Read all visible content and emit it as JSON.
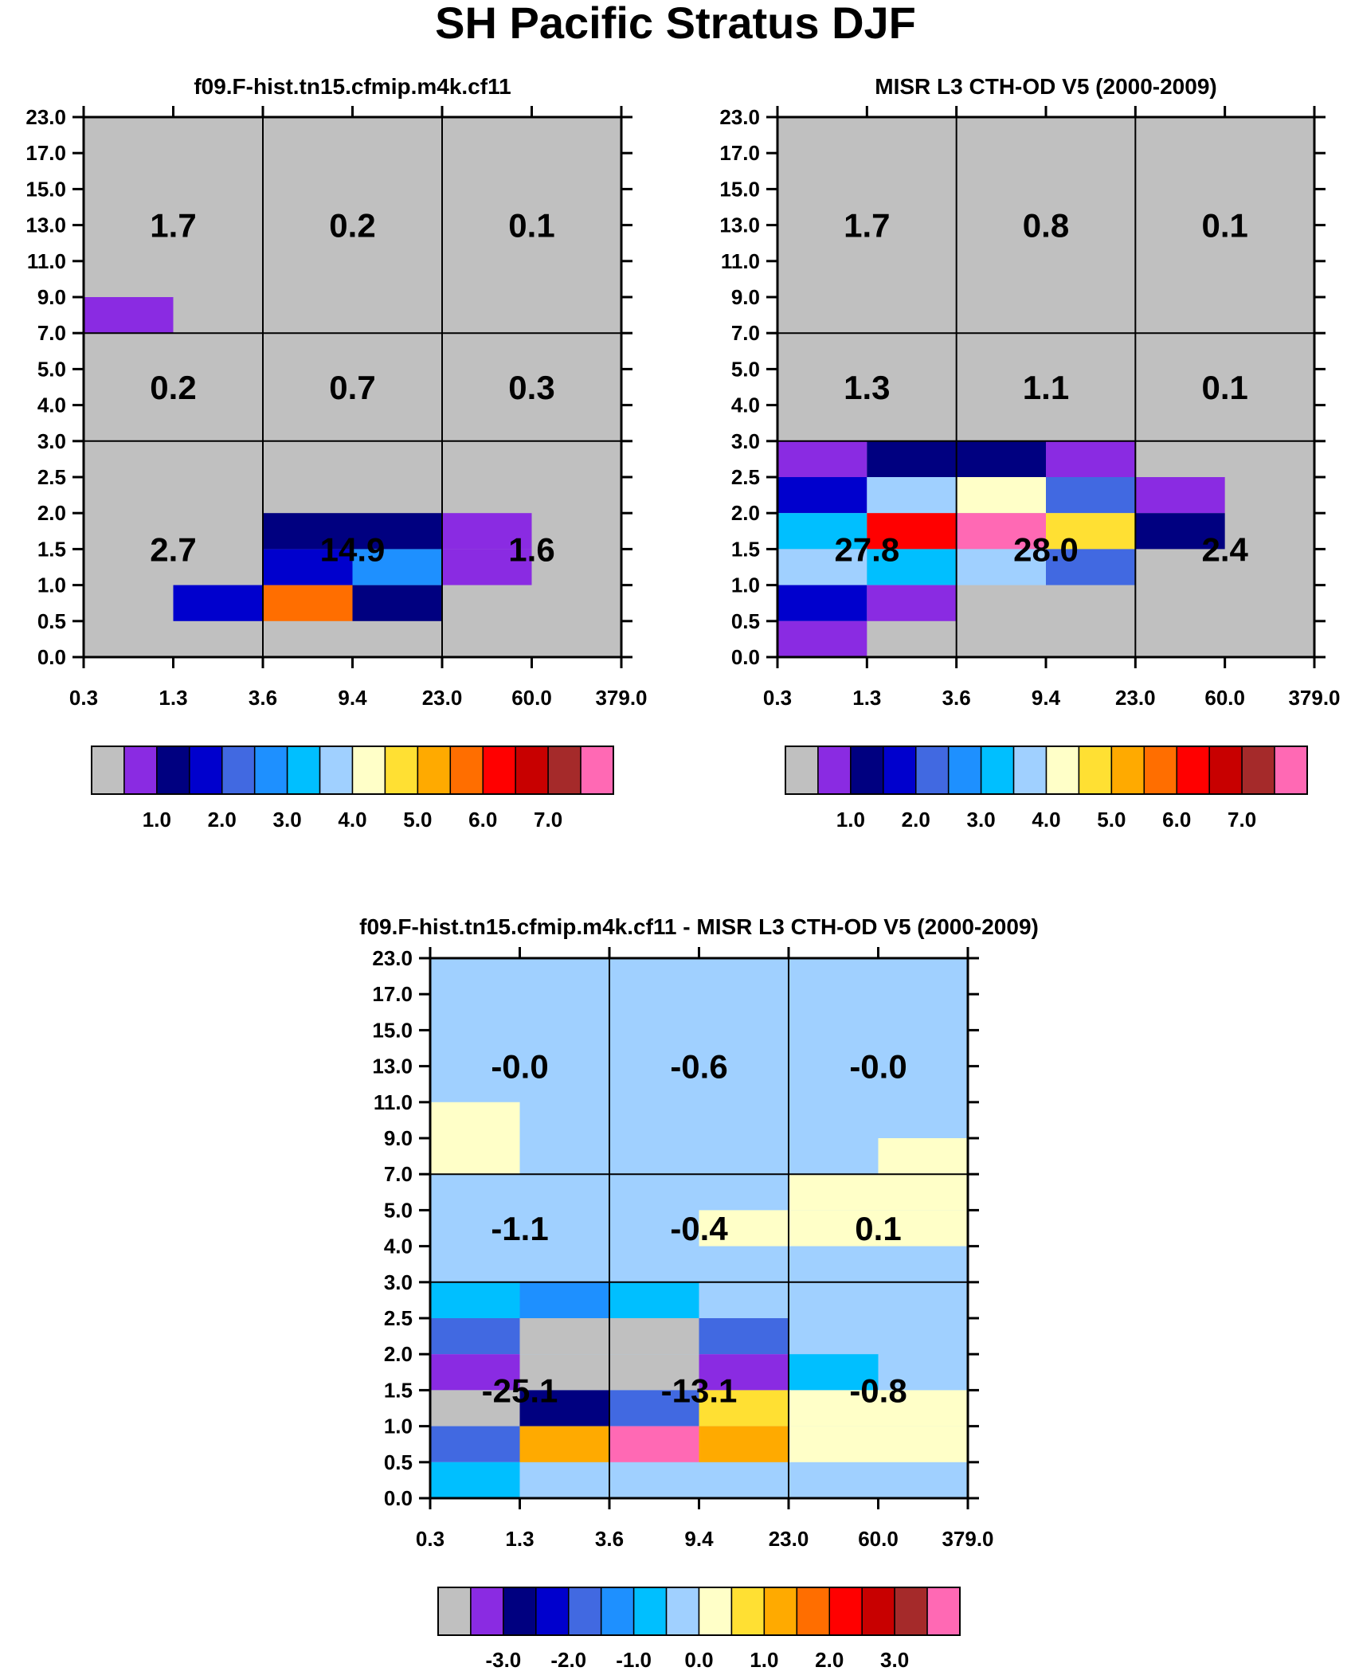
{
  "title": "SH Pacific Stratus DJF",
  "colors": {
    "palette": [
      "#c0c0c0",
      "#8a2be2",
      "#000080",
      "#0000cd",
      "#4169e1",
      "#1e90ff",
      "#00bfff",
      "#a0d0ff",
      "#ffffc8",
      "#ffe033",
      "#ffaa00",
      "#ff6e00",
      "#ff0000",
      "#c80000",
      "#a52a2a",
      "#ff69b4"
    ],
    "background": "#c0c0c0"
  },
  "chart_data": [
    {
      "type": "heatmap",
      "title": "f09.F-hist.tn15.cfmip.m4k.cf11",
      "x_tick_labels": [
        "0.3",
        "1.3",
        "3.6",
        "9.4",
        "23.0",
        "60.0",
        "379.0"
      ],
      "y_tick_labels": [
        "0.0",
        "0.5",
        "1.0",
        "1.5",
        "2.0",
        "2.5",
        "3.0",
        "4.0",
        "5.0",
        "7.0",
        "9.0",
        "11.0",
        "13.0",
        "15.0",
        "17.0",
        "23.0"
      ],
      "cells": [
        {
          "col": 0,
          "row": 9,
          "ci": 1
        },
        {
          "col": 1,
          "row": 1,
          "ci": 3
        },
        {
          "col": 2,
          "row": 1,
          "ci": 11
        },
        {
          "col": 3,
          "row": 1,
          "ci": 2
        },
        {
          "col": 2,
          "row": 2,
          "ci": 3
        },
        {
          "col": 3,
          "row": 2,
          "ci": 5
        },
        {
          "col": 2,
          "row": 3,
          "ci": 2
        },
        {
          "col": 3,
          "row": 3,
          "ci": 2
        },
        {
          "col": 4,
          "row": 2,
          "ci": 1
        },
        {
          "col": 4,
          "row": 3,
          "ci": 1
        }
      ],
      "region_values": [
        {
          "label": "1.7",
          "col_center": 1,
          "y": 13.0
        },
        {
          "label": "0.2",
          "col_center": 3,
          "y": 13.0
        },
        {
          "label": "0.1",
          "col_center": 5,
          "y": 13.0
        },
        {
          "label": "0.2",
          "col_center": 1,
          "y": 4.5
        },
        {
          "label": "0.7",
          "col_center": 3,
          "y": 4.5
        },
        {
          "label": "0.3",
          "col_center": 5,
          "y": 4.5
        },
        {
          "label": "2.7",
          "col_center": 1,
          "y": 1.5
        },
        {
          "label": "14.9",
          "col_center": 3,
          "y": 1.5
        },
        {
          "label": "1.6",
          "col_center": 5,
          "y": 1.5
        }
      ],
      "colorbar": {
        "labels": [
          "1.0",
          "2.0",
          "3.0",
          "4.0",
          "5.0",
          "6.0",
          "7.0"
        ],
        "colors": [
          "#c0c0c0",
          "#8a2be2",
          "#000080",
          "#0000cd",
          "#4169e1",
          "#1e90ff",
          "#00bfff",
          "#a0d0ff",
          "#ffffc8",
          "#ffe033",
          "#ffaa00",
          "#ff6e00",
          "#ff0000",
          "#c80000",
          "#a52a2a",
          "#ff69b4"
        ]
      }
    },
    {
      "type": "heatmap",
      "title": "MISR L3 CTH-OD V5 (2000-2009)",
      "x_tick_labels": [
        "0.3",
        "1.3",
        "3.6",
        "9.4",
        "23.0",
        "60.0",
        "379.0"
      ],
      "y_tick_labels": [
        "0.0",
        "0.5",
        "1.0",
        "1.5",
        "2.0",
        "2.5",
        "3.0",
        "4.0",
        "5.0",
        "7.0",
        "9.0",
        "11.0",
        "13.0",
        "15.0",
        "17.0",
        "23.0"
      ],
      "cells": [
        {
          "col": 0,
          "row": 5,
          "ci": 1
        },
        {
          "col": 1,
          "row": 5,
          "ci": 2
        },
        {
          "col": 2,
          "row": 5,
          "ci": 2
        },
        {
          "col": 3,
          "row": 5,
          "ci": 1
        },
        {
          "col": 0,
          "row": 4,
          "ci": 3
        },
        {
          "col": 1,
          "row": 4,
          "ci": 7
        },
        {
          "col": 2,
          "row": 4,
          "ci": 8
        },
        {
          "col": 3,
          "row": 4,
          "ci": 4
        },
        {
          "col": 4,
          "row": 4,
          "ci": 1
        },
        {
          "col": 0,
          "row": 3,
          "ci": 6
        },
        {
          "col": 1,
          "row": 3,
          "ci": 12
        },
        {
          "col": 2,
          "row": 3,
          "ci": 15
        },
        {
          "col": 3,
          "row": 3,
          "ci": 9
        },
        {
          "col": 4,
          "row": 3,
          "ci": 2
        },
        {
          "col": 0,
          "row": 2,
          "ci": 7
        },
        {
          "col": 1,
          "row": 2,
          "ci": 6
        },
        {
          "col": 2,
          "row": 2,
          "ci": 7
        },
        {
          "col": 3,
          "row": 2,
          "ci": 4
        },
        {
          "col": 0,
          "row": 1,
          "ci": 3
        },
        {
          "col": 1,
          "row": 1,
          "ci": 1
        },
        {
          "col": 0,
          "row": 0,
          "ci": 1
        }
      ],
      "region_values": [
        {
          "label": "1.7",
          "col_center": 1,
          "y": 13.0
        },
        {
          "label": "0.8",
          "col_center": 3,
          "y": 13.0
        },
        {
          "label": "0.1",
          "col_center": 5,
          "y": 13.0
        },
        {
          "label": "1.3",
          "col_center": 1,
          "y": 4.5
        },
        {
          "label": "1.1",
          "col_center": 3,
          "y": 4.5
        },
        {
          "label": "0.1",
          "col_center": 5,
          "y": 4.5
        },
        {
          "label": "27.8",
          "col_center": 1,
          "y": 1.5
        },
        {
          "label": "28.0",
          "col_center": 3,
          "y": 1.5
        },
        {
          "label": "2.4",
          "col_center": 5,
          "y": 1.5
        }
      ],
      "colorbar": {
        "labels": [
          "1.0",
          "2.0",
          "3.0",
          "4.0",
          "5.0",
          "6.0",
          "7.0"
        ],
        "colors": [
          "#c0c0c0",
          "#8a2be2",
          "#000080",
          "#0000cd",
          "#4169e1",
          "#1e90ff",
          "#00bfff",
          "#a0d0ff",
          "#ffffc8",
          "#ffe033",
          "#ffaa00",
          "#ff6e00",
          "#ff0000",
          "#c80000",
          "#a52a2a",
          "#ff69b4"
        ]
      }
    },
    {
      "type": "heatmap",
      "title": "f09.F-hist.tn15.cfmip.m4k.cf11 - MISR L3 CTH-OD V5 (2000-2009)",
      "background_ci": 7,
      "x_tick_labels": [
        "0.3",
        "1.3",
        "3.6",
        "9.4",
        "23.0",
        "60.0",
        "379.0"
      ],
      "y_tick_labels": [
        "0.0",
        "0.5",
        "1.0",
        "1.5",
        "2.0",
        "2.5",
        "3.0",
        "4.0",
        "5.0",
        "7.0",
        "9.0",
        "11.0",
        "13.0",
        "15.0",
        "17.0",
        "23.0"
      ],
      "cells": [
        {
          "col": 0,
          "row": 9,
          "ci": 8
        },
        {
          "col": 0,
          "row": 10,
          "ci": 8
        },
        {
          "col": 5,
          "row": 9,
          "ci": 8
        },
        {
          "col": 4,
          "row": 8,
          "ci": 8
        },
        {
          "col": 5,
          "row": 8,
          "ci": 8
        },
        {
          "col": 4,
          "row": 7,
          "ci": 8
        },
        {
          "col": 5,
          "row": 7,
          "ci": 8
        },
        {
          "col": 3,
          "row": 7,
          "ci": 8
        },
        {
          "col": 0,
          "row": 5,
          "ci": 6
        },
        {
          "col": 1,
          "row": 5,
          "ci": 5
        },
        {
          "col": 2,
          "row": 5,
          "ci": 6
        },
        {
          "col": 0,
          "row": 4,
          "ci": 4
        },
        {
          "col": 1,
          "row": 4,
          "ci": 0
        },
        {
          "col": 2,
          "row": 4,
          "ci": 0
        },
        {
          "col": 3,
          "row": 4,
          "ci": 4
        },
        {
          "col": 0,
          "row": 3,
          "ci": 1
        },
        {
          "col": 1,
          "row": 3,
          "ci": 0
        },
        {
          "col": 2,
          "row": 3,
          "ci": 0
        },
        {
          "col": 3,
          "row": 3,
          "ci": 1
        },
        {
          "col": 4,
          "row": 3,
          "ci": 6
        },
        {
          "col": 0,
          "row": 2,
          "ci": 0
        },
        {
          "col": 1,
          "row": 2,
          "ci": 2
        },
        {
          "col": 2,
          "row": 2,
          "ci": 4
        },
        {
          "col": 3,
          "row": 2,
          "ci": 9
        },
        {
          "col": 4,
          "row": 2,
          "ci": 8
        },
        {
          "col": 5,
          "row": 2,
          "ci": 8
        },
        {
          "col": 0,
          "row": 1,
          "ci": 4
        },
        {
          "col": 1,
          "row": 1,
          "ci": 10
        },
        {
          "col": 2,
          "row": 1,
          "ci": 15
        },
        {
          "col": 3,
          "row": 1,
          "ci": 10
        },
        {
          "col": 4,
          "row": 1,
          "ci": 8
        },
        {
          "col": 5,
          "row": 1,
          "ci": 8
        },
        {
          "col": 0,
          "row": 0,
          "ci": 6
        }
      ],
      "region_values": [
        {
          "label": "-0.0",
          "col_center": 1,
          "y": 13.0
        },
        {
          "label": "-0.6",
          "col_center": 3,
          "y": 13.0
        },
        {
          "label": "-0.0",
          "col_center": 5,
          "y": 13.0
        },
        {
          "label": "-1.1",
          "col_center": 1,
          "y": 4.5
        },
        {
          "label": "-0.4",
          "col_center": 3,
          "y": 4.5
        },
        {
          "label": "0.1",
          "col_center": 5,
          "y": 4.5
        },
        {
          "label": "-25.1",
          "col_center": 1,
          "y": 1.5
        },
        {
          "label": "-13.1",
          "col_center": 3,
          "y": 1.5
        },
        {
          "label": "-0.8",
          "col_center": 5,
          "y": 1.5
        }
      ],
      "colorbar": {
        "labels": [
          "-3.0",
          "-2.0",
          "-1.0",
          "0.0",
          "1.0",
          "2.0",
          "3.0"
        ],
        "colors": [
          "#c0c0c0",
          "#8a2be2",
          "#000080",
          "#0000cd",
          "#4169e1",
          "#1e90ff",
          "#00bfff",
          "#a0d0ff",
          "#ffffc8",
          "#ffe033",
          "#ffaa00",
          "#ff6e00",
          "#ff0000",
          "#c80000",
          "#a52a2a",
          "#ff69b4"
        ]
      }
    }
  ]
}
